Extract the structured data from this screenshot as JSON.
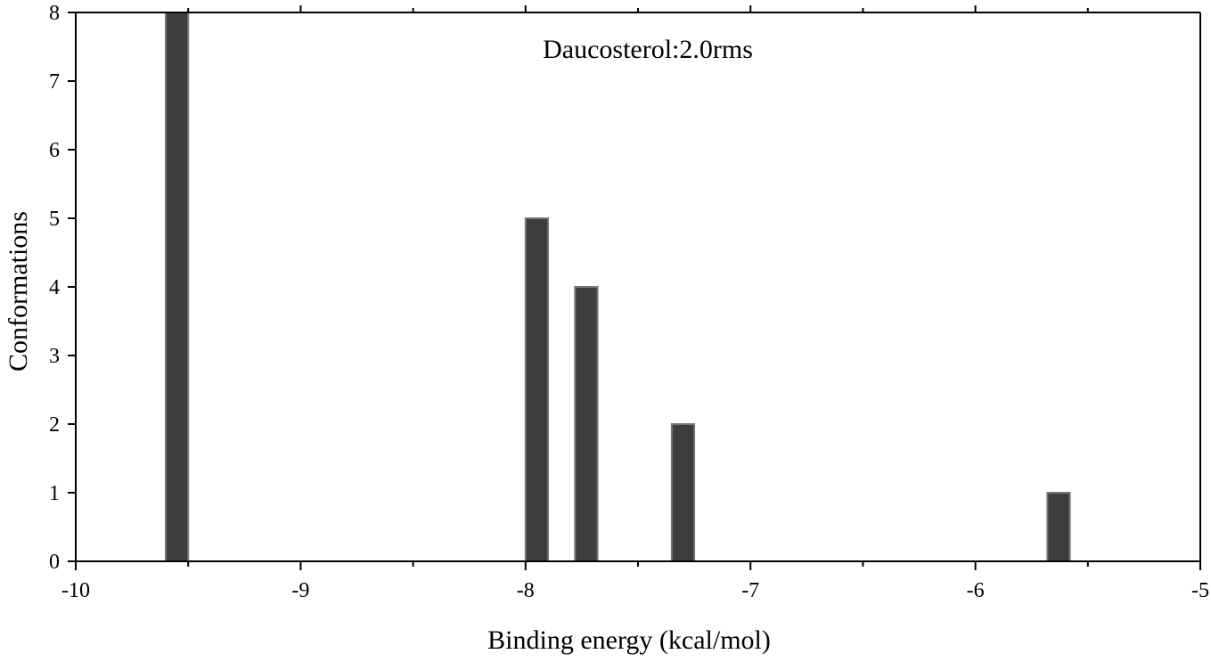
{
  "chart_data": {
    "type": "bar",
    "title": "",
    "annotation": "Daucosterol:2.0rms",
    "xlabel": "Binding energy (kcal/mol)",
    "ylabel": "Conformations",
    "xlim": [
      -10,
      -5
    ],
    "ylim": [
      0,
      8
    ],
    "xticks": [
      "-10",
      "-9",
      "-8",
      "-7",
      "-6",
      "-5"
    ],
    "yticks": [
      "0",
      "1",
      "2",
      "3",
      "4",
      "5",
      "6",
      "7",
      "8"
    ],
    "bars": [
      {
        "x": -9.55,
        "value": 8
      },
      {
        "x": -7.95,
        "value": 5
      },
      {
        "x": -7.73,
        "value": 4
      },
      {
        "x": -7.3,
        "value": 2
      },
      {
        "x": -5.63,
        "value": 1
      }
    ],
    "bar_width": 0.1,
    "bar_color": "#3d3d3d",
    "bar_edge_color": "#777777",
    "grid": false,
    "legend": "none"
  }
}
